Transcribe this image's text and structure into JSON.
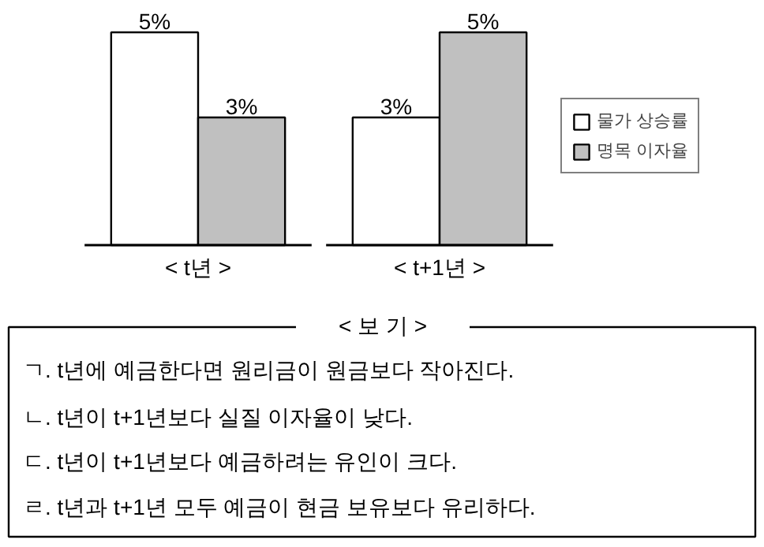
{
  "chart_data": {
    "type": "bar",
    "categories": [
      "< t년 >",
      "< t+1년 >"
    ],
    "series": [
      {
        "name": "물가 상승률",
        "color": "#ffffff",
        "values": [
          5,
          3
        ],
        "value_labels": [
          "5%",
          "3%"
        ]
      },
      {
        "name": "명목 이자율",
        "color": "#c0c0c0",
        "values": [
          3,
          5
        ],
        "value_labels": [
          "3%",
          "5%"
        ]
      }
    ],
    "legend": "right",
    "annotations": [
      "< 보 기 >",
      "ㄱ. t년에 예금한다면 원리금이 원금보다 작아진다.",
      "ㄴ. t년이 t+1년보다 실질 이자율이 낮다.",
      "ㄷ. t년이 t+1년보다 예금하려는 유인이 크다.",
      "ㄹ. t년과 t+1년 모두 예금이 현금 보유보다 유리하다."
    ]
  }
}
